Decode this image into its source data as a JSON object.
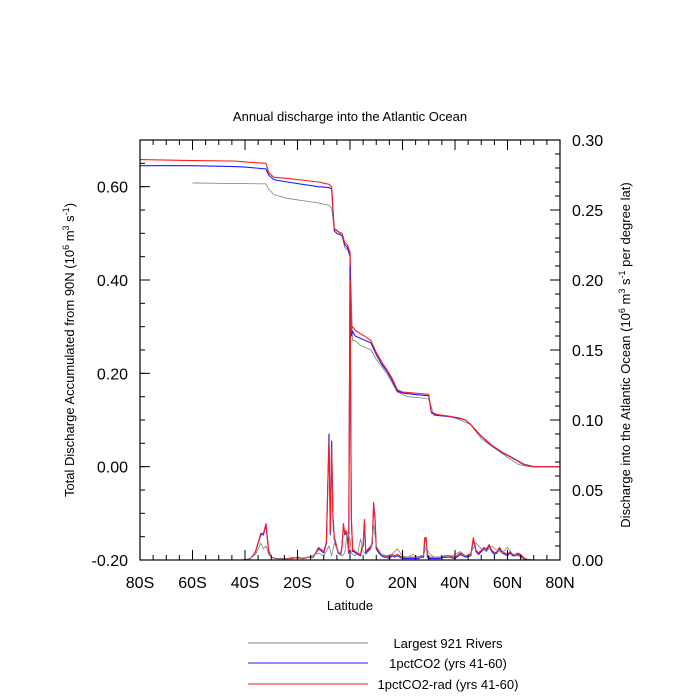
{
  "chart_data": {
    "type": "line",
    "title": "Annual discharge into the Atlantic Ocean",
    "xlabel": "Latitude",
    "ylabel_left": {
      "text": "Total Discharge Accumulated from 90N (10",
      "sup1": "6",
      "mid": " m",
      "sup2": "3",
      "mid2": " s",
      "sup3": "-1",
      "end": ")"
    },
    "ylabel_right": {
      "text": "Discharge into the Atlantic Ocean (10",
      "sup1": "6",
      "mid": " m",
      "sup2": "3",
      "mid2": " s",
      "sup3": "-1",
      "end": " per degree lat)"
    },
    "xlim": [
      -80,
      80
    ],
    "ylim_left": [
      -0.2,
      0.7
    ],
    "ylim_right": [
      0.0,
      0.3
    ],
    "x_ticks": [
      -80,
      -60,
      -40,
      -20,
      0,
      20,
      40,
      60,
      80
    ],
    "x_tick_labels": [
      "80S",
      "60S",
      "40S",
      "20S",
      "0",
      "20N",
      "40N",
      "60N",
      "80N"
    ],
    "y_left_ticks": [
      -0.2,
      0.0,
      0.2,
      0.4,
      0.6
    ],
    "y_left_tick_labels": [
      "-0.20",
      "0.00",
      "0.20",
      "0.40",
      "0.60"
    ],
    "y_right_ticks": [
      0.0,
      0.05,
      0.1,
      0.15,
      0.2,
      0.25,
      0.3
    ],
    "y_right_tick_labels": [
      "0.00",
      "0.05",
      "0.10",
      "0.15",
      "0.20",
      "0.25",
      "0.30"
    ],
    "legend_position": "bottom",
    "series": [
      {
        "name": "Largest 921 Rivers",
        "color": "#808080",
        "axis": "left",
        "x": [
          -60,
          -32,
          -31,
          -29,
          -24,
          -12,
          -8,
          -7,
          -6,
          -5,
          -4,
          -3,
          -2,
          -1,
          0,
          1,
          2,
          4,
          6,
          8,
          10,
          14,
          16,
          18,
          22,
          26,
          30,
          32,
          38,
          42,
          46,
          50,
          55,
          60,
          64,
          68,
          70,
          75,
          80
        ],
        "y": [
          0.608,
          0.606,
          0.595,
          0.583,
          0.575,
          0.565,
          0.56,
          0.555,
          0.51,
          0.508,
          0.5,
          0.495,
          0.47,
          0.465,
          0.455,
          0.27,
          0.27,
          0.26,
          0.255,
          0.25,
          0.23,
          0.2,
          0.18,
          0.16,
          0.15,
          0.148,
          0.145,
          0.11,
          0.108,
          0.1,
          0.09,
          0.06,
          0.04,
          0.02,
          0.005,
          0.0,
          0.0,
          0.0,
          0.0
        ]
      },
      {
        "name": "1pctCO2 (yrs 41-60)",
        "color": "#1c1cff",
        "axis": "left",
        "x": [
          -80,
          -60,
          -44,
          -40,
          -32,
          -31,
          -29,
          -24,
          -12,
          -8,
          -7,
          -6,
          -5,
          -3,
          -2,
          -1,
          0,
          0.5,
          1,
          2,
          4,
          6,
          8,
          10,
          12,
          14,
          16,
          18,
          20,
          24,
          28,
          30,
          31,
          33,
          38,
          42,
          44,
          46,
          50,
          54,
          58,
          62,
          66,
          70,
          75,
          80
        ],
        "y": [
          0.645,
          0.645,
          0.643,
          0.642,
          0.638,
          0.625,
          0.615,
          0.61,
          0.6,
          0.598,
          0.595,
          0.505,
          0.5,
          0.495,
          0.475,
          0.47,
          0.45,
          0.28,
          0.29,
          0.28,
          0.275,
          0.27,
          0.265,
          0.24,
          0.22,
          0.205,
          0.185,
          0.162,
          0.158,
          0.155,
          0.153,
          0.152,
          0.115,
          0.11,
          0.107,
          0.103,
          0.1,
          0.09,
          0.065,
          0.045,
          0.03,
          0.018,
          0.005,
          0.0,
          0.0,
          0.0
        ]
      },
      {
        "name": "1pctCO2-rad (yrs 41-60)",
        "color": "#ff1c1c",
        "axis": "left",
        "x": [
          -80,
          -60,
          -44,
          -40,
          -32,
          -31,
          -29,
          -24,
          -12,
          -8,
          -7,
          -6,
          -5,
          -3,
          -2,
          -1,
          0,
          0.5,
          1,
          2,
          4,
          6,
          8,
          10,
          12,
          14,
          16,
          18,
          20,
          24,
          28,
          30,
          31,
          33,
          38,
          42,
          44,
          46,
          50,
          54,
          58,
          62,
          66,
          70,
          75,
          80
        ],
        "y": [
          0.658,
          0.656,
          0.655,
          0.653,
          0.65,
          0.63,
          0.62,
          0.618,
          0.61,
          0.605,
          0.6,
          0.51,
          0.505,
          0.5,
          0.48,
          0.475,
          0.46,
          0.3,
          0.3,
          0.292,
          0.285,
          0.278,
          0.27,
          0.245,
          0.225,
          0.208,
          0.19,
          0.165,
          0.16,
          0.158,
          0.156,
          0.155,
          0.117,
          0.112,
          0.108,
          0.104,
          0.1,
          0.09,
          0.066,
          0.046,
          0.031,
          0.019,
          0.006,
          0.0,
          0.0,
          0.0
        ]
      },
      {
        "name": "1pctCO2 (yrs 41-60)",
        "color": "#1c1cff",
        "axis": "right",
        "x": [
          -80,
          -70,
          -60,
          -50,
          -42,
          -40,
          -38,
          -37,
          -36,
          -34,
          -33,
          -32,
          -31,
          -30,
          -28,
          -26,
          -24,
          -22,
          -20,
          -18,
          -16,
          -14,
          -12,
          -10,
          -9,
          -8,
          -7.5,
          -7,
          -6.5,
          -6,
          -5.5,
          -5,
          -4.5,
          -4,
          -3.5,
          -3,
          -2.5,
          -2,
          -1.5,
          -1,
          -0.5,
          0,
          0.5,
          1,
          1.5,
          2,
          3,
          4,
          4.5,
          5,
          5.5,
          6,
          7,
          8,
          8.5,
          9,
          9.5,
          10,
          11,
          12,
          13,
          14,
          15,
          16,
          17,
          18,
          20,
          22,
          24,
          26,
          27,
          28,
          28.5,
          29,
          29.5,
          30,
          31,
          32,
          34,
          36,
          38,
          40,
          42,
          44,
          46,
          47,
          48,
          49,
          50,
          51,
          52,
          53,
          54,
          55,
          56,
          57,
          58,
          59,
          60,
          61,
          62,
          63,
          64,
          65,
          66,
          68,
          70,
          75,
          80
        ],
        "y": [
          0.0,
          0.0,
          0.0,
          0.0,
          0.0,
          0.0,
          0.001,
          0.003,
          0.006,
          0.018,
          0.018,
          0.025,
          0.006,
          0.002,
          0.001,
          0.001,
          0.001,
          0.001,
          0.002,
          0.001,
          0.002,
          0.002,
          0.008,
          0.005,
          0.012,
          0.09,
          0.018,
          0.085,
          0.03,
          0.015,
          0.012,
          0.008,
          0.005,
          0.004,
          0.004,
          0.01,
          0.025,
          0.018,
          0.02,
          0.015,
          0.005,
          0.21,
          0.03,
          0.006,
          0.006,
          0.005,
          0.004,
          0.003,
          0.008,
          0.01,
          0.028,
          0.005,
          0.007,
          0.009,
          0.012,
          0.04,
          0.03,
          0.008,
          0.005,
          0.003,
          0.002,
          0.002,
          0.001,
          0.003,
          0.002,
          0.003,
          0.001,
          0.001,
          0.001,
          0.001,
          0.002,
          0.002,
          0.015,
          0.015,
          0.002,
          0.001,
          0.001,
          0.001,
          0.001,
          0.002,
          0.002,
          0.001,
          0.004,
          0.002,
          0.003,
          0.015,
          0.006,
          0.004,
          0.006,
          0.008,
          0.007,
          0.01,
          0.006,
          0.004,
          0.005,
          0.008,
          0.005,
          0.004,
          0.003,
          0.005,
          0.003,
          0.003,
          0.004,
          0.003,
          0.001,
          0.0,
          0.0,
          0.0,
          0.0
        ]
      },
      {
        "name": "1pctCO2-rad (yrs 41-60)",
        "color": "#ff1c1c",
        "axis": "right",
        "x": [
          -80,
          -70,
          -60,
          -50,
          -42,
          -40,
          -38,
          -37,
          -36,
          -34,
          -33,
          -32,
          -31,
          -30,
          -28,
          -26,
          -24,
          -22,
          -20,
          -18,
          -16,
          -14,
          -12,
          -10,
          -9,
          -8,
          -7.5,
          -7,
          -6.5,
          -6,
          -5.5,
          -5,
          -4.5,
          -4,
          -3.5,
          -3,
          -2.5,
          -2,
          -1.5,
          -1,
          -0.5,
          0,
          0.5,
          1,
          1.5,
          2,
          3,
          4,
          4.5,
          5,
          5.5,
          6,
          7,
          8,
          8.5,
          9,
          9.5,
          10,
          11,
          12,
          13,
          14,
          15,
          16,
          17,
          18,
          20,
          22,
          24,
          26,
          27,
          28,
          28.5,
          29,
          29.5,
          30,
          31,
          32,
          34,
          36,
          38,
          40,
          42,
          44,
          46,
          47,
          48,
          49,
          50,
          51,
          52,
          53,
          54,
          55,
          56,
          57,
          58,
          59,
          60,
          61,
          62,
          63,
          64,
          65,
          66,
          68,
          70,
          75,
          80
        ],
        "y": [
          0.0,
          0.0,
          0.0,
          0.0,
          0.0,
          0.0,
          0.001,
          0.003,
          0.006,
          0.019,
          0.019,
          0.026,
          0.007,
          0.002,
          0.001,
          0.001,
          0.001,
          0.001,
          0.002,
          0.001,
          0.002,
          0.002,
          0.009,
          0.006,
          0.013,
          0.085,
          0.02,
          0.08,
          0.032,
          0.016,
          0.013,
          0.009,
          0.006,
          0.005,
          0.005,
          0.011,
          0.026,
          0.019,
          0.021,
          0.016,
          0.006,
          0.2,
          0.032,
          0.007,
          0.007,
          0.006,
          0.005,
          0.004,
          0.009,
          0.011,
          0.029,
          0.006,
          0.008,
          0.01,
          0.013,
          0.041,
          0.031,
          0.009,
          0.006,
          0.004,
          0.003,
          0.003,
          0.002,
          0.004,
          0.003,
          0.004,
          0.002,
          0.002,
          0.002,
          0.002,
          0.003,
          0.003,
          0.016,
          0.016,
          0.003,
          0.002,
          0.002,
          0.002,
          0.002,
          0.003,
          0.003,
          0.002,
          0.005,
          0.003,
          0.004,
          0.016,
          0.007,
          0.005,
          0.007,
          0.009,
          0.008,
          0.011,
          0.007,
          0.005,
          0.006,
          0.009,
          0.006,
          0.005,
          0.004,
          0.006,
          0.004,
          0.004,
          0.005,
          0.004,
          0.002,
          0.0,
          0.0,
          0.0,
          0.0
        ]
      },
      {
        "name": "Largest 921 Rivers",
        "color": "#808080",
        "axis": "right",
        "x": [
          -80,
          -60,
          -50,
          -42,
          -38,
          -36,
          -34,
          -33,
          -32,
          -31,
          -30,
          -28,
          -26,
          -24,
          -22,
          -20,
          -16,
          -12,
          -10,
          -8,
          -7,
          -6,
          -5,
          -4,
          -3,
          -2,
          -1,
          0,
          0.5,
          1,
          2,
          3,
          4,
          5,
          6,
          7,
          8,
          9,
          10,
          12,
          14,
          16,
          18,
          20,
          22,
          24,
          26,
          28,
          29,
          30,
          32,
          34,
          36,
          38,
          40,
          42,
          44,
          46,
          48,
          50,
          52,
          54,
          56,
          58,
          60,
          62,
          64,
          66,
          70,
          80
        ],
        "y": [
          0.0,
          0.0,
          0.0,
          0.0,
          0.001,
          0.004,
          0.012,
          0.008,
          0.01,
          0.004,
          0.002,
          0.001,
          0.001,
          0.001,
          0.002,
          0.001,
          0.002,
          0.005,
          0.003,
          0.01,
          0.003,
          0.012,
          0.008,
          0.004,
          0.003,
          0.005,
          0.02,
          0.015,
          0.005,
          0.004,
          0.003,
          0.005,
          0.015,
          0.006,
          0.004,
          0.006,
          0.008,
          0.025,
          0.01,
          0.004,
          0.003,
          0.004,
          0.008,
          0.003,
          0.002,
          0.004,
          0.002,
          0.003,
          0.01,
          0.005,
          0.002,
          0.002,
          0.003,
          0.002,
          0.004,
          0.006,
          0.003,
          0.005,
          0.012,
          0.008,
          0.006,
          0.01,
          0.007,
          0.005,
          0.009,
          0.004,
          0.003,
          0.001,
          0.0,
          0.0
        ]
      }
    ]
  }
}
